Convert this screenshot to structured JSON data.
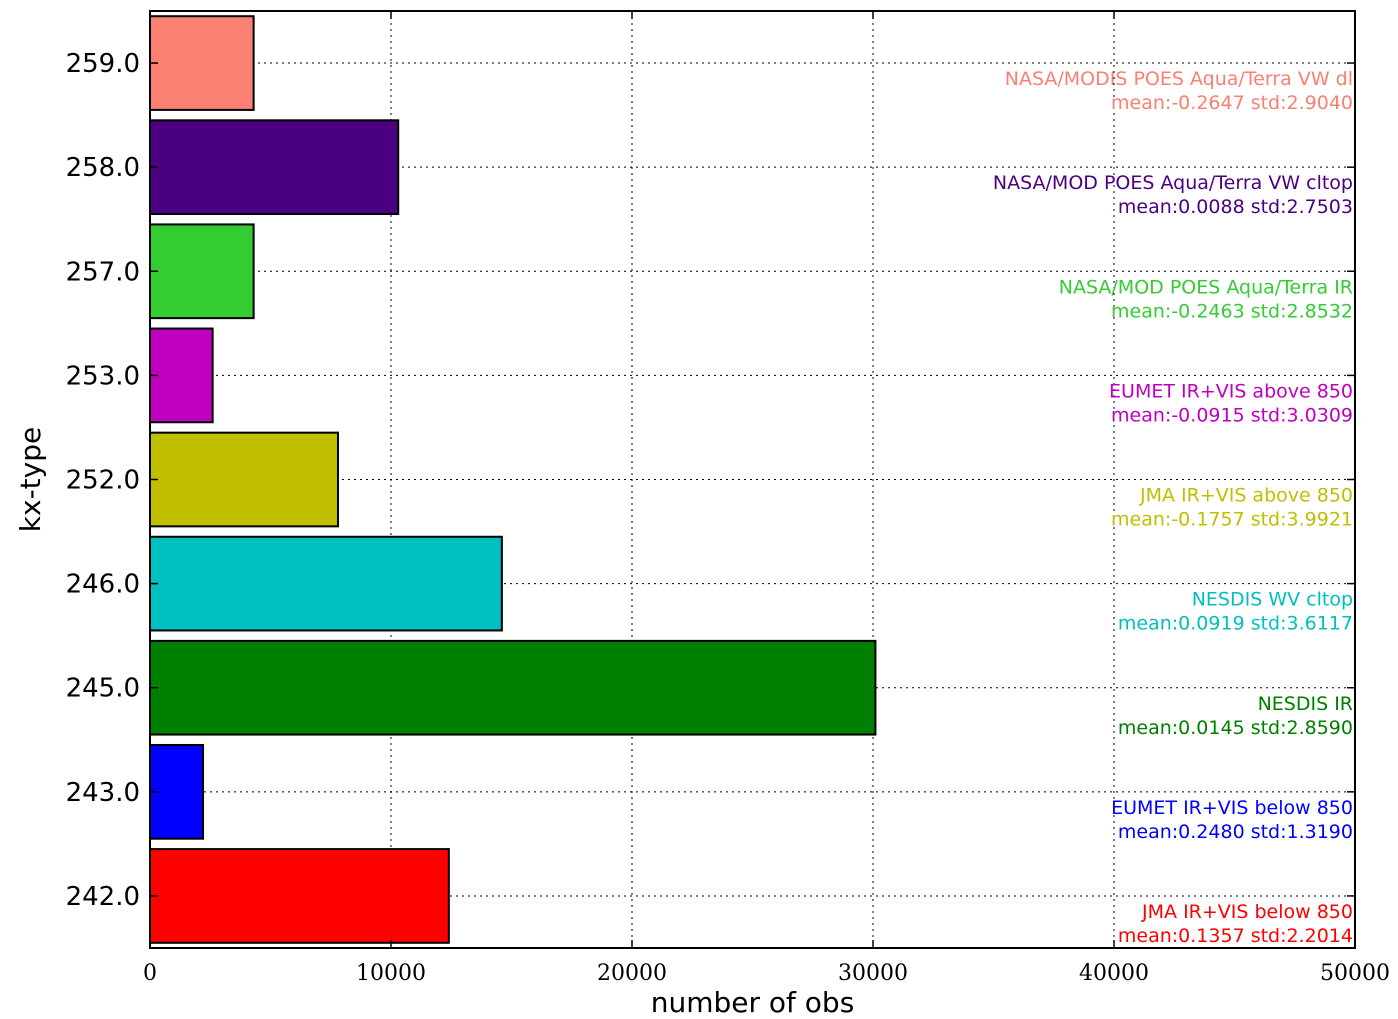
{
  "chart_data": {
    "type": "bar",
    "orientation": "horizontal",
    "title": "",
    "xlabel": "number of obs",
    "ylabel": "kx-type",
    "xlim": [
      0,
      50000
    ],
    "x_ticks": [
      "0",
      "10000",
      "20000",
      "30000",
      "40000",
      "50000"
    ],
    "grid": true,
    "categories": [
      "242.0",
      "243.0",
      "245.0",
      "246.0",
      "252.0",
      "253.0",
      "257.0",
      "258.0",
      "259.0"
    ],
    "values": [
      12400,
      2200,
      30100,
      14600,
      7800,
      2600,
      4300,
      10300,
      4300
    ],
    "colors": [
      "#ff0000",
      "#0000ff",
      "#008000",
      "#00bfbf",
      "#bfbf00",
      "#bf00bf",
      "#33cc33",
      "#4b0082",
      "#fa8072"
    ],
    "annotations": [
      {
        "name": "JMA IR+VIS below 850",
        "stats": "mean:0.1357 std:2.2014"
      },
      {
        "name": "EUMET IR+VIS below 850",
        "stats": "mean:0.2480 std:1.3190"
      },
      {
        "name": "NESDIS IR",
        "stats": "mean:0.0145 std:2.8590"
      },
      {
        "name": "NESDIS WV cltop",
        "stats": "mean:0.0919 std:3.6117"
      },
      {
        "name": "JMA IR+VIS above 850",
        "stats": "mean:-0.1757 std:3.9921"
      },
      {
        "name": "EUMET IR+VIS above 850",
        "stats": "mean:-0.0915 std:3.0309"
      },
      {
        "name": "NASA/MOD POES Aqua/Terra IR",
        "stats": "mean:-0.2463 std:2.8532"
      },
      {
        "name": "NASA/MOD POES Aqua/Terra VW cltop",
        "stats": "mean:0.0088 std:2.7503"
      },
      {
        "name": "NASA/MODIS POES Aqua/Terra VW dl",
        "stats": "mean:-0.2647 std:2.9040"
      }
    ]
  }
}
